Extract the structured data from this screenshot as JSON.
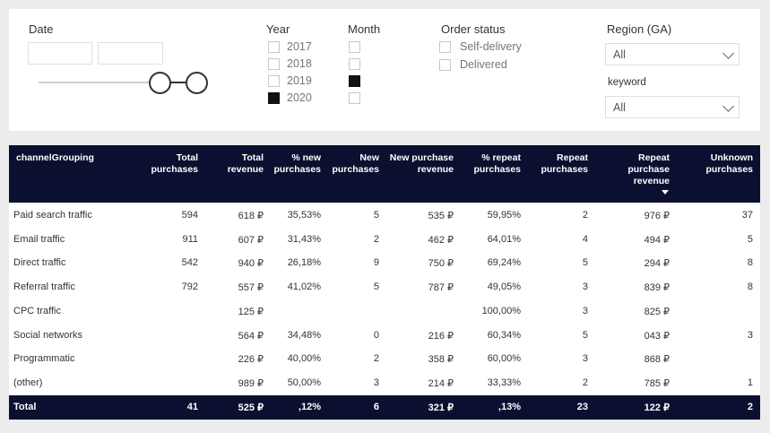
{
  "filters": {
    "date": {
      "label": "Date",
      "start_value": "",
      "end_value": ""
    },
    "year": {
      "label": "Year",
      "options": [
        {
          "label": "2017",
          "checked": false
        },
        {
          "label": "2018",
          "checked": false
        },
        {
          "label": "2019",
          "checked": false
        },
        {
          "label": "2020",
          "checked": true
        }
      ]
    },
    "month": {
      "label": "Month",
      "options": [
        {
          "checked": false
        },
        {
          "checked": false
        },
        {
          "checked": true
        },
        {
          "checked": false
        }
      ]
    },
    "order_status": {
      "label": "Order status",
      "options": [
        {
          "label": "Self-delivery",
          "checked": false
        },
        {
          "label": "Delivered",
          "checked": false
        }
      ]
    },
    "region": {
      "label": "Region (GA)",
      "value": "All"
    },
    "keyword": {
      "label": "keyword",
      "value": "All"
    }
  },
  "table": {
    "headers": [
      [
        "channelGrouping"
      ],
      [
        "Total",
        "purchases"
      ],
      [
        "Total",
        "revenue"
      ],
      [
        "% new",
        "purchases"
      ],
      [
        "New",
        "purchases"
      ],
      [
        "New purchase",
        "revenue"
      ],
      [
        "% repeat",
        "purchases"
      ],
      [
        "Repeat",
        "purchases"
      ],
      [
        "Repeat",
        "purchase",
        "revenue"
      ],
      [
        "Unknown",
        "purchases"
      ]
    ],
    "rows": [
      [
        "Paid search traffic",
        "594",
        "618 ₽",
        "35,53%",
        "5",
        "535 ₽",
        "59,95%",
        "2",
        "976 ₽",
        "37"
      ],
      [
        "Email traffic",
        "911",
        "607 ₽",
        "31,43%",
        "2",
        "462 ₽",
        "64,01%",
        "4",
        "494 ₽",
        "5"
      ],
      [
        "Direct traffic",
        "542",
        "940 ₽",
        "26,18%",
        "9",
        "750 ₽",
        "69,24%",
        "5",
        "294 ₽",
        "8"
      ],
      [
        "Referral traffic",
        "792",
        "557 ₽",
        "41,02%",
        "5",
        "787 ₽",
        "49,05%",
        "3",
        "839 ₽",
        "8"
      ],
      [
        "CPC traffic",
        "",
        "125 ₽",
        "",
        "",
        "",
        "100,00%",
        "3",
        "825 ₽",
        ""
      ],
      [
        "Social networks",
        "",
        "564 ₽",
        "34,48%",
        "0",
        "216 ₽",
        "60,34%",
        "5",
        "043 ₽",
        "3"
      ],
      [
        "Programmatic",
        "",
        "226 ₽",
        "40,00%",
        "2",
        "358 ₽",
        "60,00%",
        "3",
        "868 ₽",
        ""
      ],
      [
        "(other)",
        "",
        "989 ₽",
        "50,00%",
        "3",
        "214 ₽",
        "33,33%",
        "2",
        "785 ₽",
        "1"
      ]
    ],
    "total": [
      "Total",
      "41",
      "525 ₽",
      ",12%",
      "6",
      "321 ₽",
      ",13%",
      "23",
      "122 ₽",
      "2"
    ]
  }
}
